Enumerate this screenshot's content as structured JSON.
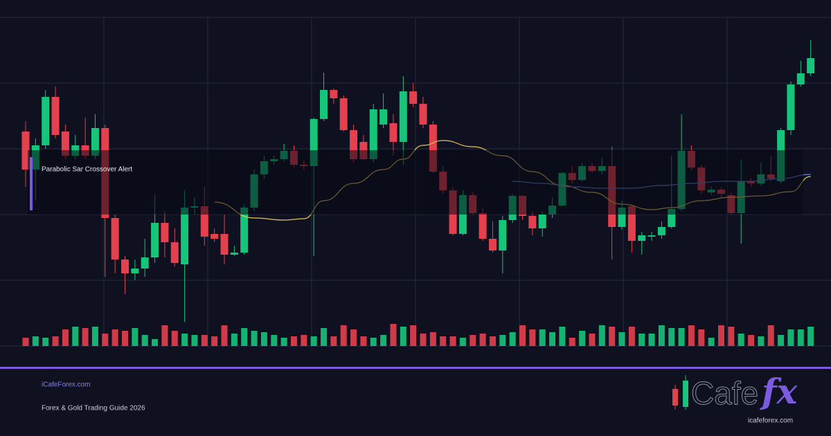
{
  "chart_data": {
    "type": "candlestick",
    "alert": "Parabolic Sar Crossover Alert",
    "up_color": "#16c47a",
    "down_color": "#e5404e",
    "ylim": [
      0,
      475
    ],
    "open": [
      310,
      255,
      290,
      360,
      310,
      275,
      290,
      275,
      315,
      185,
      125,
      105,
      112,
      128,
      178,
      150,
      118,
      200,
      202,
      162,
      162,
      132,
      135,
      200,
      248,
      267,
      270,
      282,
      262,
      260,
      328,
      370,
      358,
      312,
      295,
      270,
      320,
      322,
      295,
      368,
      350,
      320,
      252,
      225,
      162,
      218,
      192,
      155,
      138,
      182,
      217,
      188,
      170,
      190,
      203,
      250,
      240,
      260,
      253,
      260,
      172,
      202,
      152,
      158,
      160,
      172,
      198,
      282,
      258,
      222,
      226,
      218,
      192,
      238,
      235,
      248,
      238,
      312,
      378,
      394
    ],
    "high": [
      325,
      300,
      370,
      375,
      320,
      305,
      330,
      335,
      320,
      190,
      130,
      125,
      155,
      218,
      195,
      170,
      225,
      215,
      230,
      170,
      190,
      145,
      205,
      255,
      275,
      275,
      292,
      290,
      268,
      330,
      395,
      372,
      362,
      320,
      305,
      350,
      365,
      335,
      390,
      380,
      360,
      325,
      260,
      230,
      225,
      222,
      200,
      180,
      188,
      220,
      218,
      195,
      195,
      215,
      252,
      260,
      265,
      265,
      272,
      288,
      210,
      204,
      165,
      165,
      180,
      275,
      335,
      290,
      262,
      230,
      230,
      222,
      270,
      242,
      265,
      275,
      315,
      382,
      412,
      442
    ],
    "low": [
      230,
      210,
      285,
      300,
      270,
      270,
      270,
      270,
      100,
      105,
      75,
      95,
      100,
      120,
      128,
      115,
      35,
      190,
      145,
      150,
      118,
      130,
      132,
      195,
      242,
      262,
      267,
      258,
      255,
      130,
      325,
      350,
      310,
      265,
      268,
      265,
      315,
      275,
      262,
      345,
      315,
      250,
      220,
      160,
      160,
      190,
      152,
      135,
      105,
      178,
      182,
      160,
      158,
      185,
      202,
      235,
      238,
      250,
      248,
      125,
      168,
      135,
      132,
      152,
      155,
      170,
      195,
      254,
      220,
      218,
      215,
      190,
      148,
      230,
      232,
      238,
      235,
      305,
      375,
      390
    ],
    "close": [
      255,
      290,
      360,
      305,
      275,
      290,
      275,
      315,
      185,
      125,
      105,
      112,
      128,
      178,
      150,
      120,
      200,
      202,
      158,
      155,
      132,
      135,
      200,
      248,
      267,
      270,
      282,
      262,
      260,
      328,
      370,
      358,
      312,
      270,
      270,
      342,
      342,
      295,
      368,
      350,
      320,
      252,
      225,
      162,
      218,
      192,
      155,
      138,
      182,
      217,
      188,
      170,
      190,
      203,
      250,
      240,
      260,
      253,
      260,
      172,
      200,
      152,
      160,
      160,
      172,
      198,
      282,
      258,
      225,
      226,
      220,
      192,
      238,
      235,
      248,
      242,
      312,
      378,
      394,
      416
    ],
    "volume": [
      12,
      14,
      12,
      14,
      24,
      28,
      26,
      28,
      18,
      24,
      22,
      26,
      16,
      10,
      30,
      22,
      18,
      16,
      16,
      14,
      30,
      18,
      26,
      22,
      20,
      16,
      12,
      14,
      16,
      14,
      26,
      14,
      30,
      24,
      14,
      12,
      16,
      32,
      28,
      30,
      18,
      20,
      14,
      14,
      12,
      16,
      18,
      14,
      16,
      20,
      30,
      24,
      24,
      20,
      28,
      12,
      22,
      18,
      30,
      28,
      20,
      28,
      18,
      18,
      30,
      26,
      26,
      30,
      24,
      12,
      30,
      28,
      18,
      16,
      14,
      30,
      16,
      24,
      24,
      28
    ],
    "overlays": [
      {
        "color": "#e8c45a",
        "x": [
          19,
          23,
          26,
          28,
          30,
          33,
          36,
          38,
          40,
          42,
          45,
          48,
          51,
          54,
          57,
          60,
          63,
          65,
          68,
          71,
          74,
          77,
          79
        ],
        "values": [
          208,
          185,
          182,
          184,
          210,
          235,
          255,
          270,
          290,
          297,
          288,
          275,
          252,
          232,
          222,
          205,
          197,
          200,
          210,
          215,
          217,
          223,
          245
        ]
      },
      {
        "color": "#6a7fd6",
        "x": [
          49,
          52,
          55,
          58,
          61,
          64,
          67,
          70,
          73,
          76,
          79
        ],
        "values": [
          238,
          235,
          230,
          228,
          228,
          232,
          235,
          238,
          238,
          242,
          248
        ]
      }
    ]
  },
  "footer": {
    "site": "iCafeForex.com",
    "tagline": "Forex & Gold Trading Guide 2026",
    "logo_main": "Cafe",
    "logo_accent": "fx",
    "logo_url": "icafeforex.com"
  }
}
